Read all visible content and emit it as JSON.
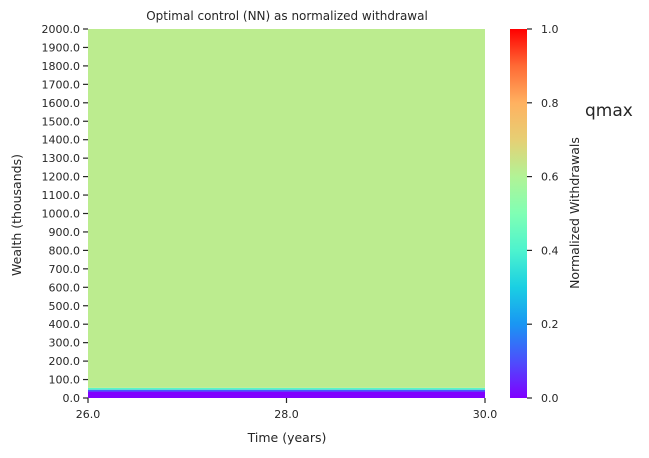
{
  "chart_data": {
    "type": "heatmap",
    "title": "Optimal control (NN) as normalized withdrawal",
    "xlabel": "Time (years)",
    "ylabel": "Wealth (thousands)",
    "xlim": [
      26.0,
      30.0
    ],
    "ylim": [
      0.0,
      2000.0
    ],
    "x_ticks": [
      "26.0",
      "28.0",
      "30.0"
    ],
    "y_ticks": [
      "0.0",
      "100.0",
      "200.0",
      "300.0",
      "400.0",
      "500.0",
      "600.0",
      "700.0",
      "800.0",
      "900.0",
      "1000.0",
      "1100.0",
      "1200.0",
      "1300.0",
      "1400.0",
      "1500.0",
      "1600.0",
      "1700.0",
      "1800.0",
      "1900.0",
      "2000.0"
    ],
    "grid": false,
    "colormap": "rainbow",
    "colorbar": {
      "label": "Normalized Withdrawals",
      "range": [
        0.0,
        1.0
      ],
      "ticks": [
        "0.0",
        "0.2",
        "0.4",
        "0.6",
        "0.8",
        "1.0"
      ]
    },
    "annotation": "qmax",
    "bands": [
      {
        "wealth_from": 0.0,
        "wealth_to": 35.0,
        "value": 0.0
      },
      {
        "wealth_from": 35.0,
        "wealth_to": 45.0,
        "value": 0.12
      },
      {
        "wealth_from": 45.0,
        "wealth_to": 55.0,
        "value": 0.42
      },
      {
        "wealth_from": 55.0,
        "wealth_to": 2000.0,
        "value": 0.62
      }
    ]
  }
}
